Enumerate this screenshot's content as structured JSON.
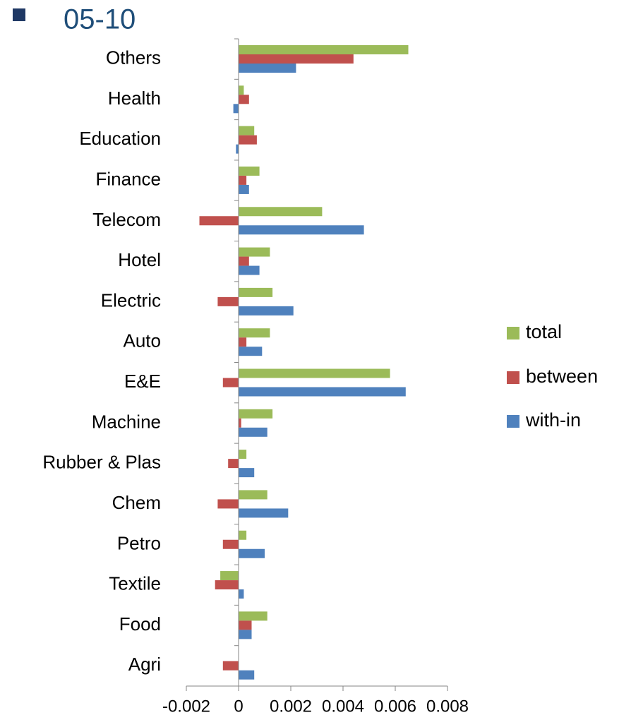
{
  "chart_data": {
    "type": "bar",
    "orientation": "horizontal",
    "title": "05-10",
    "categories": [
      "Agri",
      "Food",
      "Textile",
      "Petro",
      "Chem",
      "Rubber & Plas",
      "Machine",
      "E&E",
      "Auto",
      "Electric",
      "Hotel",
      "Telecom",
      "Finance",
      "Education",
      "Health",
      "Others"
    ],
    "series": [
      {
        "name": "total",
        "color": "#9bbb59",
        "values": [
          0,
          0.0011,
          -0.0007,
          0.0003,
          0.0011,
          0.0003,
          0.0013,
          0.0058,
          0.0012,
          0.0013,
          0.0012,
          0.0032,
          0.0008,
          0.0006,
          0.0002,
          0.0065
        ]
      },
      {
        "name": "between",
        "color": "#c0504d",
        "values": [
          -0.0006,
          0.0005,
          -0.0009,
          -0.0006,
          -0.0008,
          -0.0004,
          0.0001,
          -0.0006,
          0.0003,
          -0.0008,
          0.0004,
          -0.0015,
          0.0003,
          0.0007,
          0.0004,
          0.0044
        ]
      },
      {
        "name": "with-in",
        "color": "#4f81bd",
        "values": [
          0.0006,
          0.0005,
          0.0002,
          0.001,
          0.0019,
          0.0006,
          0.0011,
          0.0064,
          0.0009,
          0.0021,
          0.0008,
          0.0048,
          0.0004,
          -0.0001,
          -0.0002,
          0.0022
        ]
      }
    ],
    "xlim": [
      -0.002,
      0.008
    ],
    "xticks": [
      -0.002,
      0,
      0.002,
      0.004,
      0.006,
      0.008
    ],
    "legend": "right"
  }
}
